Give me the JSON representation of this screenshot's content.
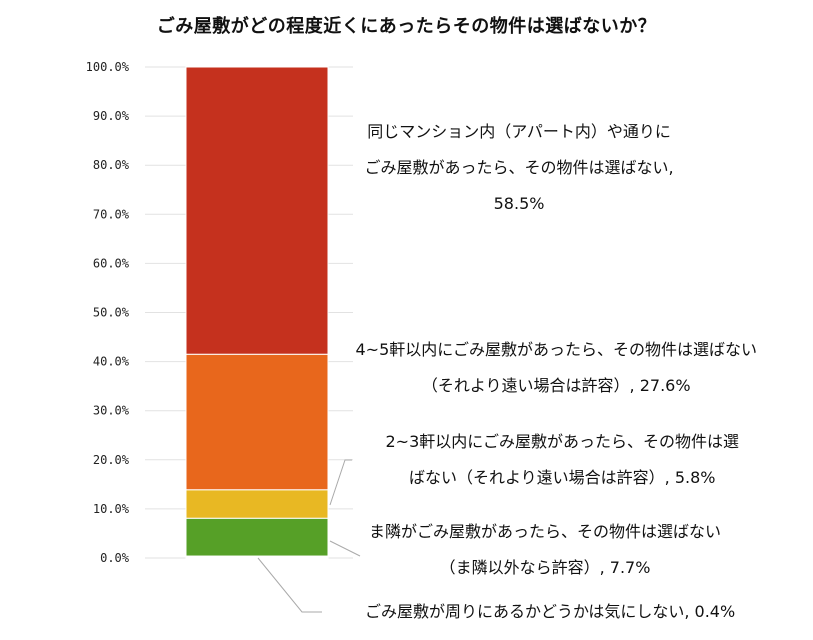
{
  "chart_data": {
    "type": "bar",
    "stacked": true,
    "title": "ごみ屋敷がどの程度近くにあったらその物件は選ばないか？",
    "yticks": [
      "0.0%",
      "10.0%",
      "20.0%",
      "30.0%",
      "40.0%",
      "50.0%",
      "60.0%",
      "70.0%",
      "80.0%",
      "90.0%",
      "100.0%"
    ],
    "ylim": [
      0,
      100
    ],
    "grid": true,
    "series": [
      {
        "value": 0.4,
        "color": "#ffffff",
        "label_lines": [
          "ごみ屋敷が周りにあるかどうかは気にしない, 0.4%"
        ]
      },
      {
        "value": 7.7,
        "color": "#56a027",
        "label_lines": [
          "ま隣がごみ屋敷があったら、その物件は選ばない",
          "（ま隣以外なら許容）, 7.7%"
        ]
      },
      {
        "value": 5.8,
        "color": "#e8b823",
        "label_lines": [
          "2~3軒以内にごみ屋敷があったら、その物件は選",
          "ばない（それより遠い場合は許容）, 5.8%"
        ]
      },
      {
        "value": 27.6,
        "color": "#e8671c",
        "label_lines": [
          "4~5軒以内にごみ屋敷があったら、その物件は選ばない",
          "（それより遠い場合は許容）, 27.6%"
        ]
      },
      {
        "value": 58.5,
        "color": "#c5311e",
        "label_lines": [
          "同じマンション内（アパート内）や通りに",
          "ごみ屋敷があったら、その物件は選ばない,",
          "58.5%"
        ]
      }
    ]
  }
}
